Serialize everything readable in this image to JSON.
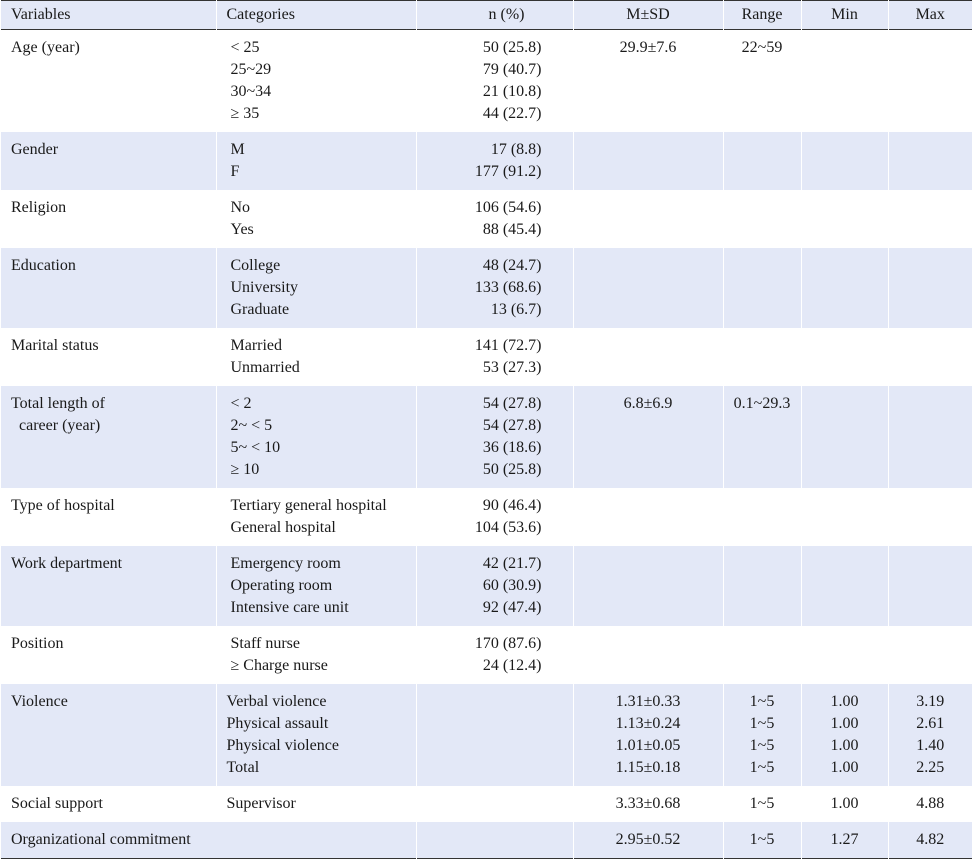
{
  "headers": {
    "variables": "Variables",
    "categories": "Categories",
    "n": "n (%)",
    "msd": "M±SD",
    "range": "Range",
    "min": "Min",
    "max": "Max"
  },
  "rows": [
    {
      "variable": [
        "Age (year)"
      ],
      "categories": [
        "< 25",
        "25~29",
        "30~34",
        "≥ 35"
      ],
      "n": [
        "50 (25.8)",
        "79 (40.7)",
        "21 (10.8)",
        "44 (22.7)"
      ],
      "msd": [
        "29.9±7.6"
      ],
      "range": [
        "22~59"
      ],
      "min": [],
      "max": []
    },
    {
      "variable": [
        "Gender"
      ],
      "categories": [
        "M",
        "F"
      ],
      "n": [
        "17 (8.8)",
        "177 (91.2)"
      ],
      "msd": [],
      "range": [],
      "min": [],
      "max": []
    },
    {
      "variable": [
        "Religion"
      ],
      "categories": [
        "No",
        "Yes"
      ],
      "n": [
        "106 (54.6)",
        "88 (45.4)"
      ],
      "msd": [],
      "range": [],
      "min": [],
      "max": []
    },
    {
      "variable": [
        "Education"
      ],
      "categories": [
        "College",
        "University",
        "Graduate"
      ],
      "n": [
        "48 (24.7)",
        "133 (68.6)",
        "13 (6.7)"
      ],
      "msd": [],
      "range": [],
      "min": [],
      "max": []
    },
    {
      "variable": [
        "Marital status"
      ],
      "categories": [
        "Married",
        "Unmarried"
      ],
      "n": [
        "141 (72.7)",
        "53 (27.3)"
      ],
      "msd": [],
      "range": [],
      "min": [],
      "max": []
    },
    {
      "variable": [
        "Total length of",
        "  career (year)"
      ],
      "categories": [
        "< 2",
        "2~ < 5",
        "5~ < 10",
        "≥ 10"
      ],
      "n": [
        "54 (27.8)",
        "54 (27.8)",
        "36 (18.6)",
        "50 (25.8)"
      ],
      "msd": [
        "6.8±6.9"
      ],
      "range": [
        "0.1~29.3"
      ],
      "min": [],
      "max": []
    },
    {
      "variable": [
        "Type of hospital"
      ],
      "categories": [
        "Tertiary general hospital",
        "General hospital"
      ],
      "n": [
        "90 (46.4)",
        "104 (53.6)"
      ],
      "msd": [],
      "range": [],
      "min": [],
      "max": []
    },
    {
      "variable": [
        "Work department"
      ],
      "categories": [
        "Emergency room",
        "Operating room",
        "Intensive care unit"
      ],
      "n": [
        "42 (21.7)",
        "60 (30.9)",
        "92 (47.4)"
      ],
      "msd": [],
      "range": [],
      "min": [],
      "max": []
    },
    {
      "variable": [
        "Position"
      ],
      "categories": [
        "Staff nurse",
        "≥ Charge nurse"
      ],
      "n": [
        "170 (87.6)",
        "24 (12.4)"
      ],
      "msd": [],
      "range": [],
      "min": [],
      "max": []
    },
    {
      "variable": [
        "Violence"
      ],
      "categories": [
        "Verbal violence",
        "Physical assault",
        "Physical violence",
        "Total"
      ],
      "n": [],
      "msd": [
        "1.31±0.33",
        "1.13±0.24",
        "1.01±0.05",
        "1.15±0.18"
      ],
      "range": [
        "1~5",
        "1~5",
        "1~5",
        "1~5"
      ],
      "min": [
        "1.00",
        "1.00",
        "1.00",
        "1.00"
      ],
      "max": [
        "3.19",
        "2.61",
        "1.40",
        "2.25"
      ]
    },
    {
      "variable": [
        "Social support"
      ],
      "categories": [
        "Supervisor"
      ],
      "n": [],
      "msd": [
        "3.33±0.68"
      ],
      "range": [
        "1~5"
      ],
      "min": [
        "1.00"
      ],
      "max": [
        "4.88"
      ]
    },
    {
      "variable": [
        "Organizational commitment"
      ],
      "categories": [],
      "n": [],
      "msd": [
        "2.95±0.52"
      ],
      "range": [
        "1~5"
      ],
      "min": [
        "1.27"
      ],
      "max": [
        "4.82"
      ]
    }
  ]
}
